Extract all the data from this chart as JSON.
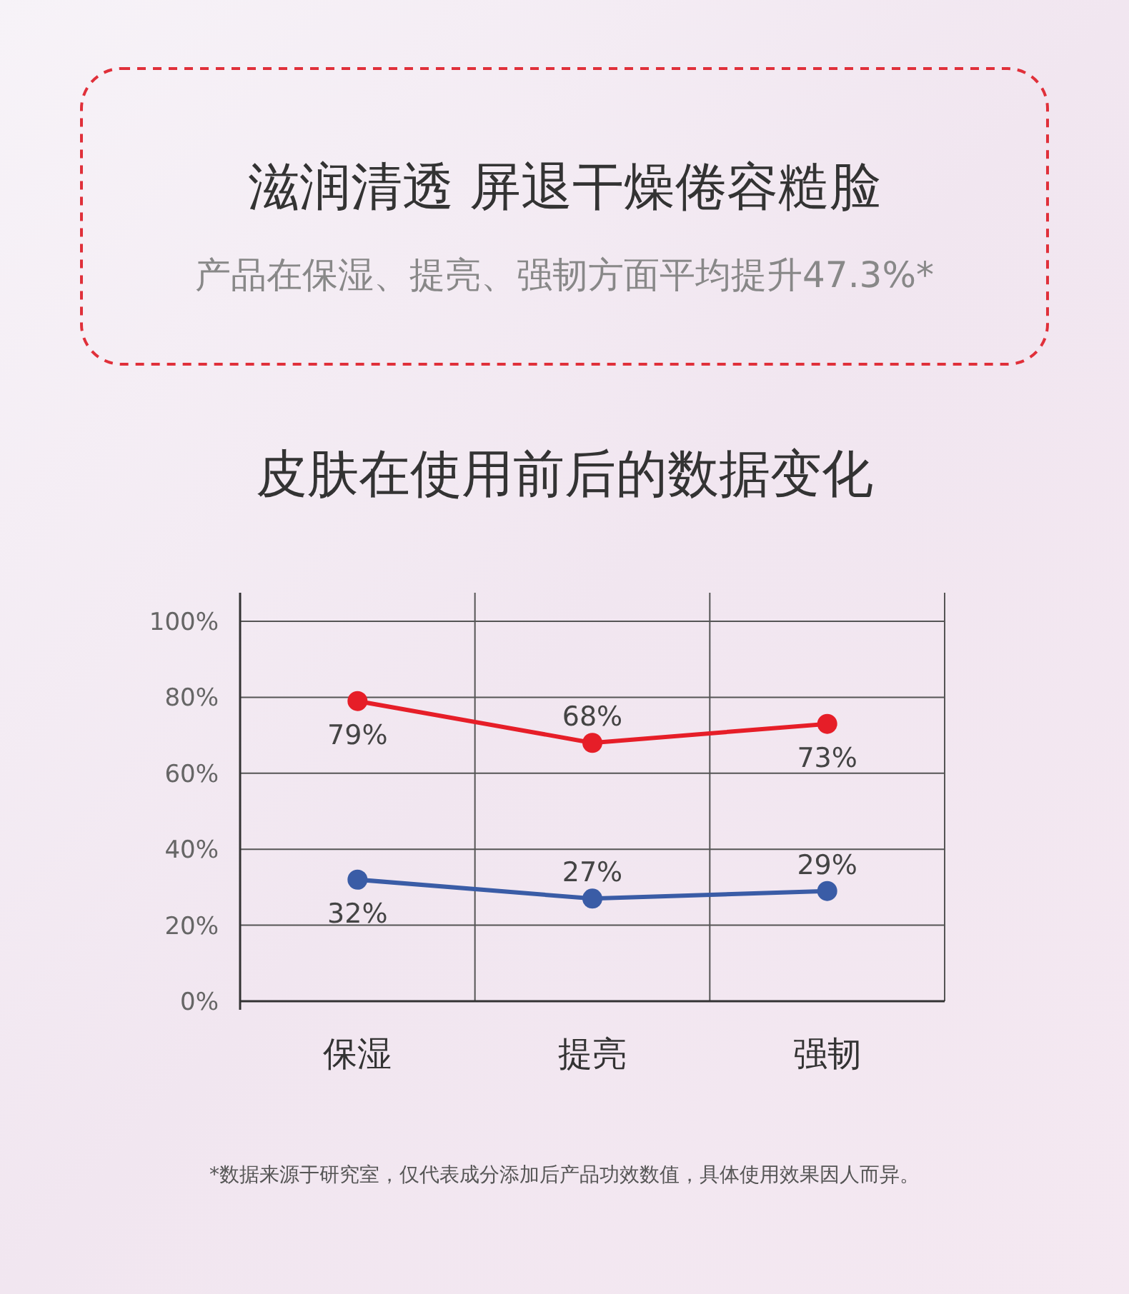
{
  "chart_data": {
    "type": "line",
    "title": "皮肤在使用前后的数据变化",
    "annotations": [
      "滋润清透 屏退干燥倦容糙脸",
      "产品在保湿、提亮、强韧方面平均提升47.3%*",
      "*数据来源于研究室，仅代表成分添加后产品功效数值，具体使用效果因人而异。"
    ],
    "categories": [
      "保湿",
      "提亮",
      "强韧"
    ],
    "series": [
      {
        "color": "#e61e28",
        "values": [
          79,
          68,
          73
        ],
        "value_labels": [
          "79%",
          "68%",
          "73%"
        ]
      },
      {
        "color": "#3a5ca6",
        "values": [
          32,
          27,
          29
        ],
        "value_labels": [
          "32%",
          "27%",
          "29%"
        ]
      }
    ],
    "ylim": [
      0,
      100
    ],
    "yticks": [
      {
        "value": 0,
        "label": "0%"
      },
      {
        "value": 20,
        "label": "20%"
      },
      {
        "value": 40,
        "label": "40%"
      },
      {
        "value": 60,
        "label": "60%"
      },
      {
        "value": 80,
        "label": "80%"
      },
      {
        "value": 100,
        "label": "100%"
      }
    ],
    "grid": true,
    "marker": "circle",
    "line_style": "solid"
  }
}
